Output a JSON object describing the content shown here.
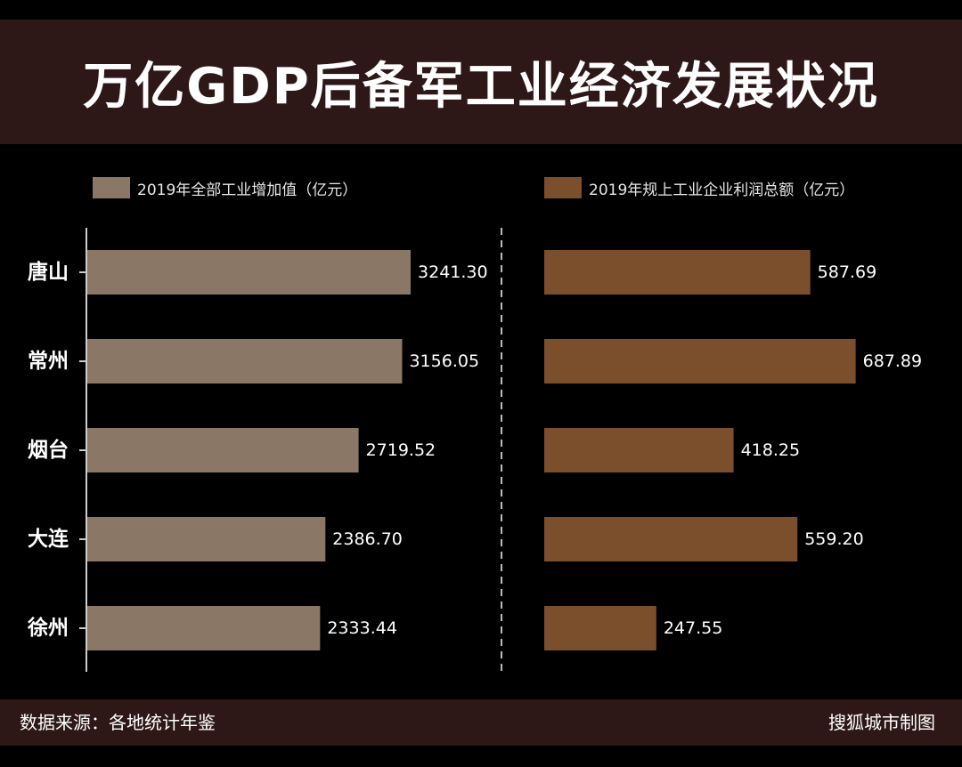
{
  "title": "万亿GDP后备军工业经济发展状况",
  "source": "数据来源：各地统计年鉴",
  "credit": "搜狐城市制图",
  "colors": {
    "background": "#000000",
    "band": "#2e1717",
    "series1": "#8a7766",
    "series2": "#7b4f2b"
  },
  "chart_data": {
    "type": "bar",
    "orientation": "horizontal",
    "categories": [
      "唐山",
      "常州",
      "烟台",
      "大连",
      "徐州"
    ],
    "series": [
      {
        "name": "2019年全部工业增加值（亿元）",
        "values": [
          3241.3,
          3156.05,
          2719.52,
          2386.7,
          2333.44
        ],
        "labels": [
          "3241.30",
          "3156.05",
          "2719.52",
          "2386.70",
          "2333.44"
        ],
        "xlim": [
          0,
          4000
        ]
      },
      {
        "name": "2019年规上工业企业利润总额（亿元）",
        "values": [
          587.69,
          687.89,
          418.25,
          559.2,
          247.55
        ],
        "labels": [
          "587.69",
          "687.89",
          "418.25",
          "559.20",
          "247.55"
        ],
        "xlim": [
          0,
          850
        ]
      }
    ],
    "legend": "top"
  }
}
